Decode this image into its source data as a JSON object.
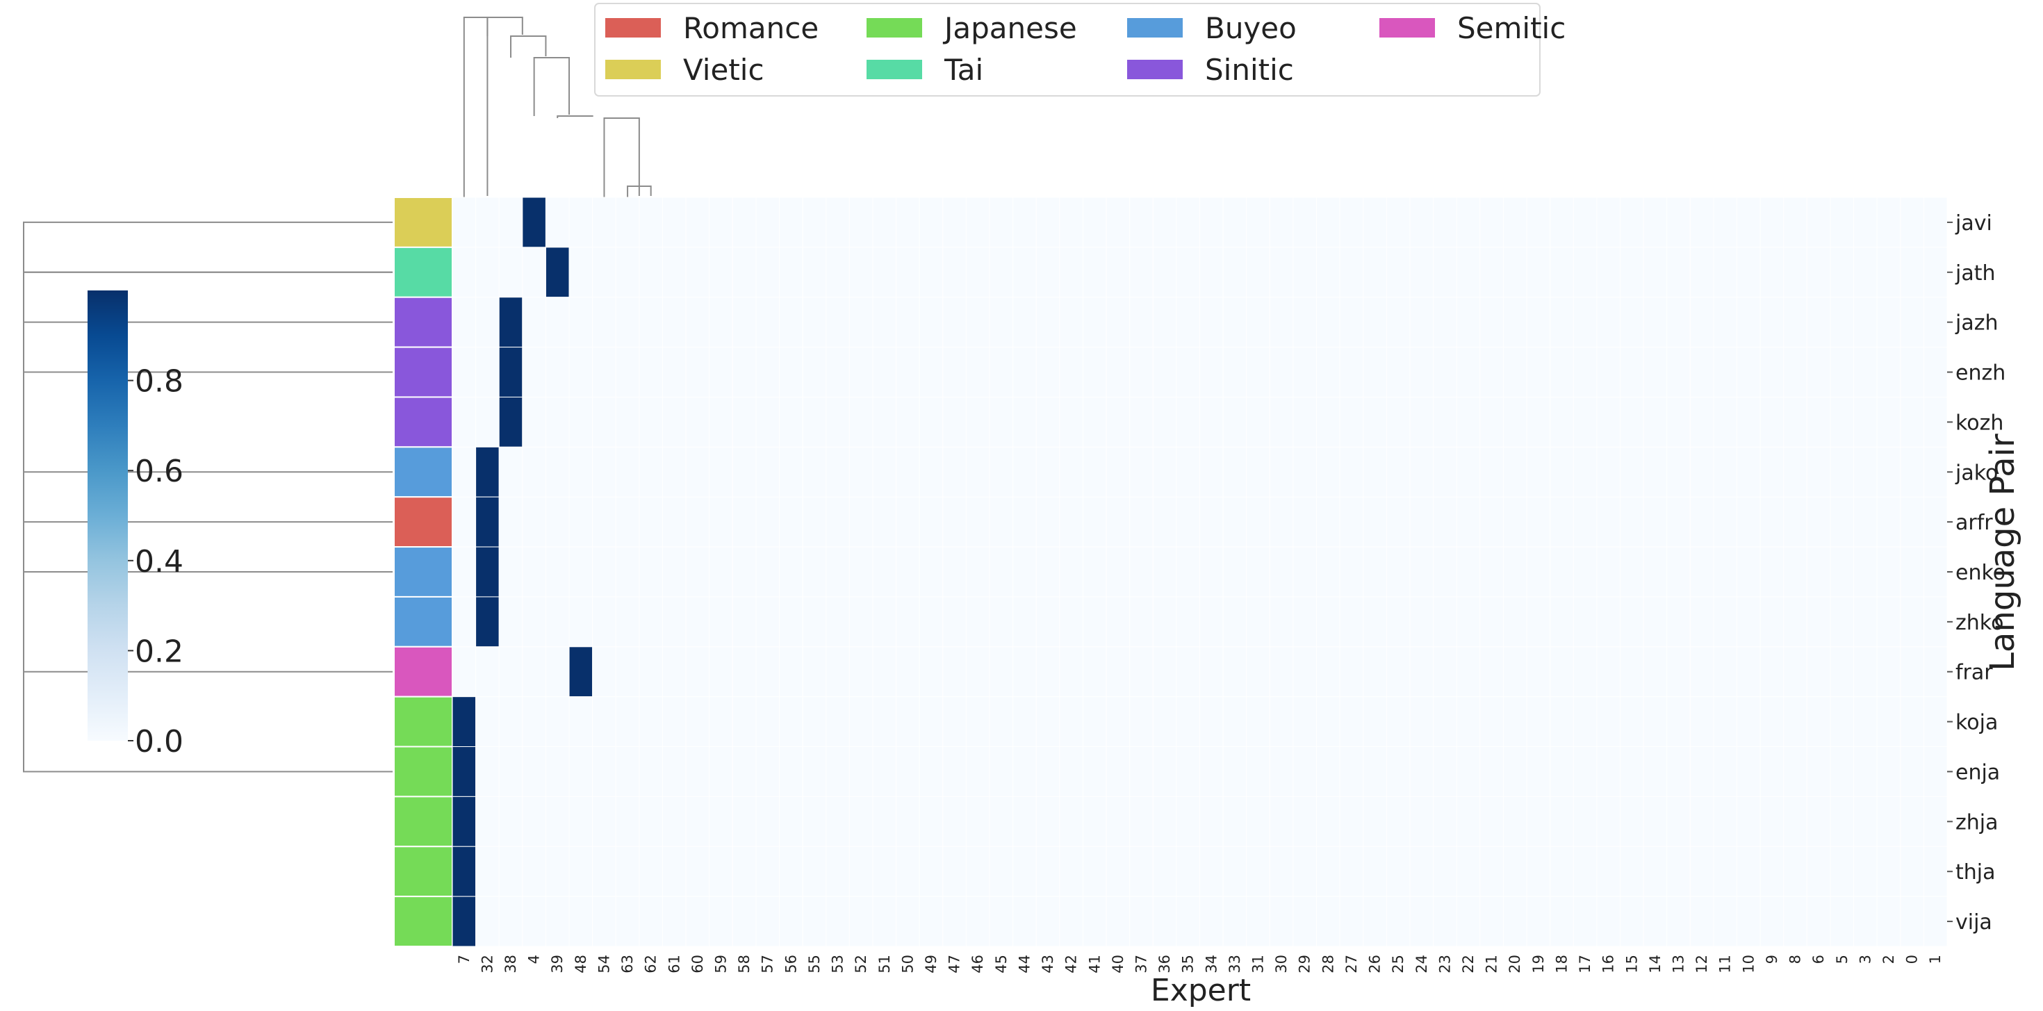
{
  "chart_data": {
    "type": "heatmap",
    "xlabel": "Expert",
    "ylabel": "Language Pair",
    "x_categories": [
      "7",
      "32",
      "38",
      "4",
      "39",
      "48",
      "54",
      "63",
      "62",
      "61",
      "60",
      "59",
      "58",
      "57",
      "56",
      "55",
      "53",
      "52",
      "51",
      "50",
      "49",
      "47",
      "46",
      "45",
      "44",
      "43",
      "42",
      "41",
      "40",
      "37",
      "36",
      "35",
      "34",
      "33",
      "31",
      "30",
      "29",
      "28",
      "27",
      "26",
      "25",
      "24",
      "23",
      "22",
      "21",
      "20",
      "19",
      "18",
      "17",
      "16",
      "15",
      "14",
      "13",
      "12",
      "11",
      "10",
      "9",
      "8",
      "6",
      "5",
      "3",
      "2",
      "0",
      "1"
    ],
    "y_categories": [
      "javi",
      "jath",
      "jazh",
      "enzh",
      "kozh",
      "jako",
      "arfr",
      "enko",
      "zhko",
      "frar",
      "koja",
      "enja",
      "zhja",
      "thja",
      "vija"
    ],
    "row_groups": [
      "Vietic",
      "Tai",
      "Sinitic",
      "Sinitic",
      "Sinitic",
      "Buyeo",
      "Romance",
      "Buyeo",
      "Buyeo",
      "Semitic",
      "Japanese",
      "Japanese",
      "Japanese",
      "Japanese",
      "Japanese"
    ],
    "cells": [
      {
        "row": "javi",
        "col": "4",
        "value": 1.0
      },
      {
        "row": "jath",
        "col": "39",
        "value": 1.0
      },
      {
        "row": "jazh",
        "col": "38",
        "value": 1.0
      },
      {
        "row": "enzh",
        "col": "38",
        "value": 1.0
      },
      {
        "row": "kozh",
        "col": "38",
        "value": 1.0
      },
      {
        "row": "jako",
        "col": "32",
        "value": 1.0
      },
      {
        "row": "arfr",
        "col": "32",
        "value": 1.0
      },
      {
        "row": "enko",
        "col": "32",
        "value": 1.0
      },
      {
        "row": "zhko",
        "col": "32",
        "value": 1.0
      },
      {
        "row": "frar",
        "col": "48",
        "value": 1.0
      },
      {
        "row": "koja",
        "col": "7",
        "value": 1.0
      },
      {
        "row": "enja",
        "col": "7",
        "value": 1.0
      },
      {
        "row": "zhja",
        "col": "7",
        "value": 1.0
      },
      {
        "row": "thja",
        "col": "7",
        "value": 1.0
      },
      {
        "row": "vija",
        "col": "7",
        "value": 1.0
      }
    ],
    "default_value": 0.0,
    "value_range": [
      0.0,
      1.0
    ],
    "colormap": "Blues",
    "colorbar_ticks": [
      "0.0",
      "0.2",
      "0.4",
      "0.6",
      "0.8"
    ],
    "legend": [
      {
        "name": "Romance",
        "color": "#db5f57"
      },
      {
        "name": "Japanese",
        "color": "#75db57"
      },
      {
        "name": "Buyeo",
        "color": "#579cdb"
      },
      {
        "name": "Semitic",
        "color": "#d957be"
      },
      {
        "name": "Vietic",
        "color": "#dbce57"
      },
      {
        "name": "Tai",
        "color": "#57dba5"
      },
      {
        "name": "Sinitic",
        "color": "#8957db"
      }
    ],
    "legend_placement": "top",
    "colorbar_placement": "left",
    "row_dendrogram": true,
    "col_dendrogram": true
  }
}
